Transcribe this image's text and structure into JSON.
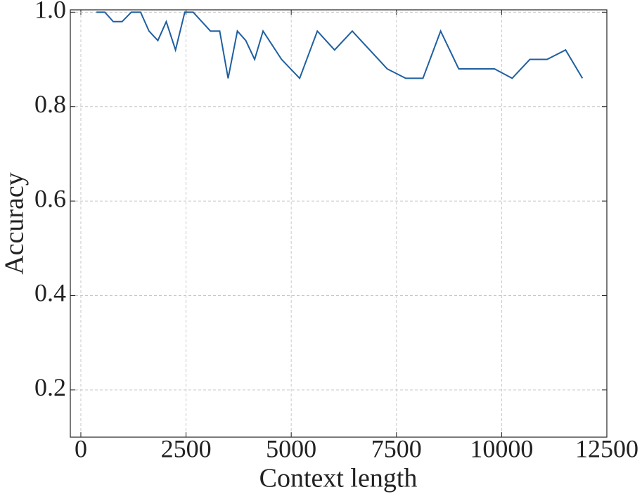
{
  "chart_data": {
    "type": "line",
    "x_label": "Context length",
    "y_label": "Accuracy",
    "x": [
      370,
      570,
      770,
      980,
      1200,
      1420,
      1620,
      1830,
      2030,
      2250,
      2470,
      2670,
      3080,
      3300,
      3500,
      3720,
      3920,
      4130,
      4330,
      4770,
      5200,
      5620,
      6030,
      6450,
      7280,
      7720,
      8130,
      8550,
      8980,
      9830,
      10250,
      10670,
      11080,
      11520,
      11920
    ],
    "series": [
      {
        "name": "Accuracy",
        "color": "#1f5fa0",
        "values": [
          1.0,
          1.0,
          0.98,
          0.98,
          1.0,
          1.0,
          0.96,
          0.94,
          0.98,
          0.92,
          1.0,
          1.0,
          0.96,
          0.96,
          0.86,
          0.96,
          0.94,
          0.9,
          0.96,
          0.9,
          0.86,
          0.96,
          0.92,
          0.96,
          0.88,
          0.86,
          0.86,
          0.96,
          0.88,
          0.88,
          0.86,
          0.9,
          0.9,
          0.92,
          0.86
        ]
      }
    ],
    "xlim": [
      -250,
      12500
    ],
    "ylim": [
      0.1,
      1.005
    ],
    "xticks": [
      0,
      2500,
      5000,
      7500,
      10000,
      12500
    ],
    "yticks": [
      0.2,
      0.4,
      0.6,
      0.8,
      {
        "value": 1.0,
        "label": "1.0"
      }
    ],
    "grid": true
  }
}
